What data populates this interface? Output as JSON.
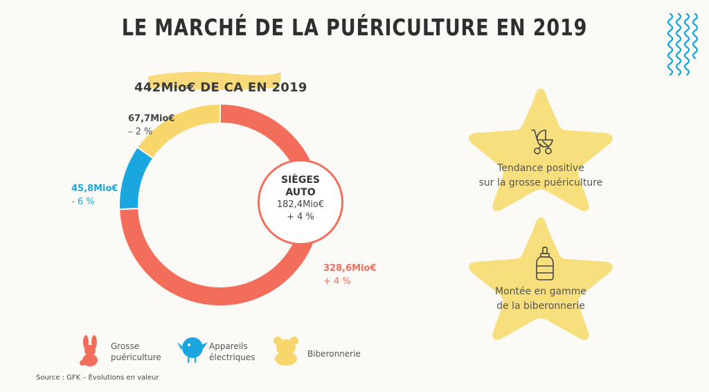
{
  "header": {
    "title": "LE MARCHÉ DE LA PUÉRICULTURE EN 2019",
    "subtitle": "442Mio€ DE CA EN 2019"
  },
  "colors": {
    "grosse": "#f26e5a",
    "appareils": "#1aa7df",
    "biberonnerie": "#f7d66b",
    "star": "#f7df7e",
    "highlight": "#f7d66b"
  },
  "chart_data": {
    "type": "pie",
    "title": "442Mio€ DE CA EN 2019",
    "total": 442,
    "slices": [
      {
        "name": "Grosse puériculture",
        "value": 328.6,
        "value_label": "328,6Mio€",
        "change": "+ 4 %",
        "color": "#f26e5a"
      },
      {
        "name": "Appareils électriques",
        "value": 45.8,
        "value_label": "45,8Mio€",
        "change": "- 6 %",
        "color": "#1aa7df"
      },
      {
        "name": "Biberonnerie",
        "value": 67.7,
        "value_label": "67,7Mio€",
        "change": "– 2 %",
        "color": "#f7d66b"
      }
    ],
    "callout": {
      "title_line1": "SIÈGES",
      "title_line2": "AUTO",
      "value_label": "182,4Mio€",
      "change": "+ 4 %"
    }
  },
  "legend": [
    {
      "line1": "Grosse",
      "line2": "puériculture",
      "icon": "bunny-icon"
    },
    {
      "line1": "Appareils",
      "line2": "électriques",
      "icon": "bird-icon"
    },
    {
      "line1": "Biberonnerie",
      "line2": "",
      "icon": "bear-icon"
    }
  ],
  "trends": [
    {
      "line1": "Tendance positive",
      "line2": "sur la grosse puériculture",
      "icon": "stroller-icon"
    },
    {
      "line1": "Montée en gamme",
      "line2": "de la biberonnerie",
      "icon": "baby-bottle-icon"
    }
  ],
  "source": "Source : GFK – Évolutions en valeur"
}
